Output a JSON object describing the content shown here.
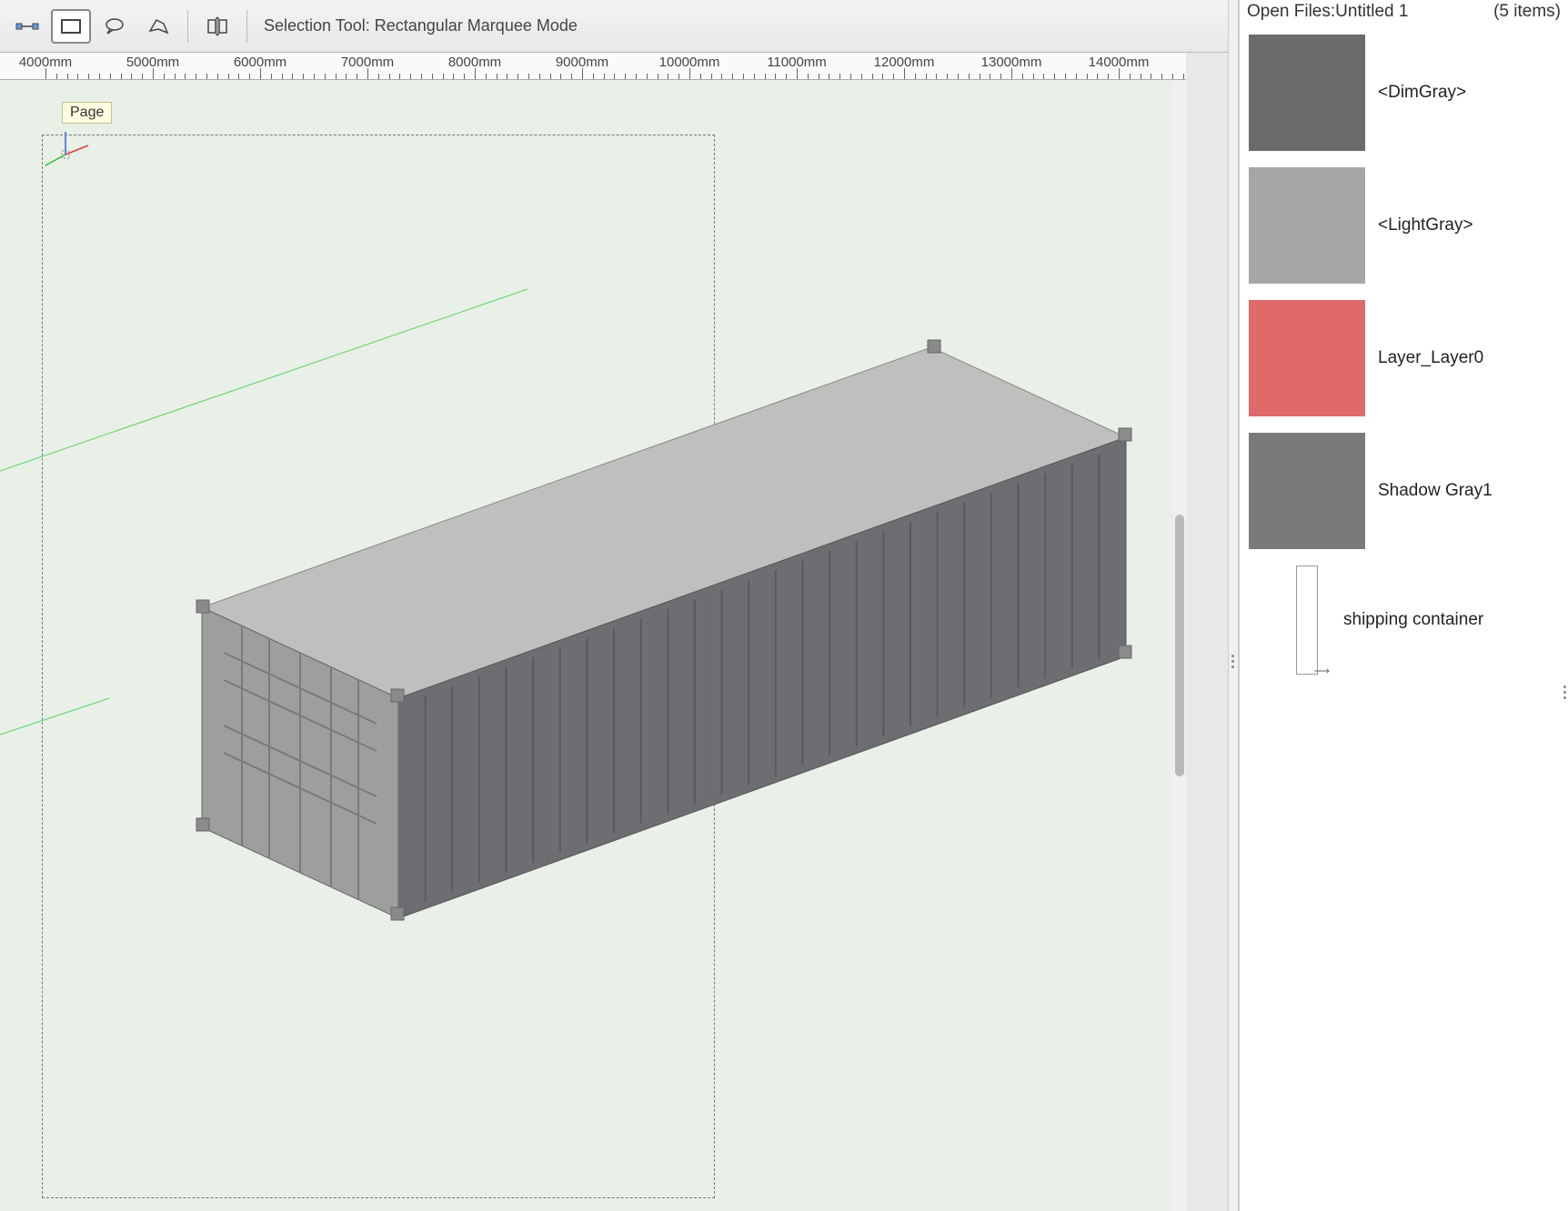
{
  "toolbar": {
    "selection_tool_label": "Selection Tool: Rectangular Marquee Mode",
    "icons": {
      "node_connect": "#555",
      "rectangle": "#555",
      "lasso_speech": "#555",
      "lasso_free": "#555",
      "distribute": "#555",
      "save_region": "#555",
      "cursor_info": "#555",
      "hat": "#555",
      "grid": "#555",
      "eye_box": "#555",
      "eye_dropdown": "#555"
    }
  },
  "ruler": {
    "start": 4000,
    "step": 1000,
    "end": 14000,
    "unit": "mm"
  },
  "canvas": {
    "page_label": "Page",
    "background": "#e8f0e8",
    "marquee_color": "#777777",
    "container": {
      "top_color": "#c0bfbd",
      "side_color": "#6e6e72",
      "front_color": "#a0a0a0",
      "rib_color": "#5a5a5e"
    },
    "axis_colors": {
      "x": "#e04040",
      "y": "#30c030",
      "z": "#3060e0"
    }
  },
  "panel": {
    "title_prefix": "Open Files:",
    "title_file": "Untitled 1",
    "count_text": "(5 items)",
    "swatches": [
      {
        "color": "#6b6b6b",
        "label": "<DimGray>"
      },
      {
        "color": "#a6a6a6",
        "label": "<LightGray>"
      },
      {
        "color": "#e06969",
        "label": "Layer_Layer0"
      },
      {
        "color": "#7a7a7a",
        "label": "Shadow Gray1"
      }
    ],
    "thumb_item_label": "shipping container"
  }
}
